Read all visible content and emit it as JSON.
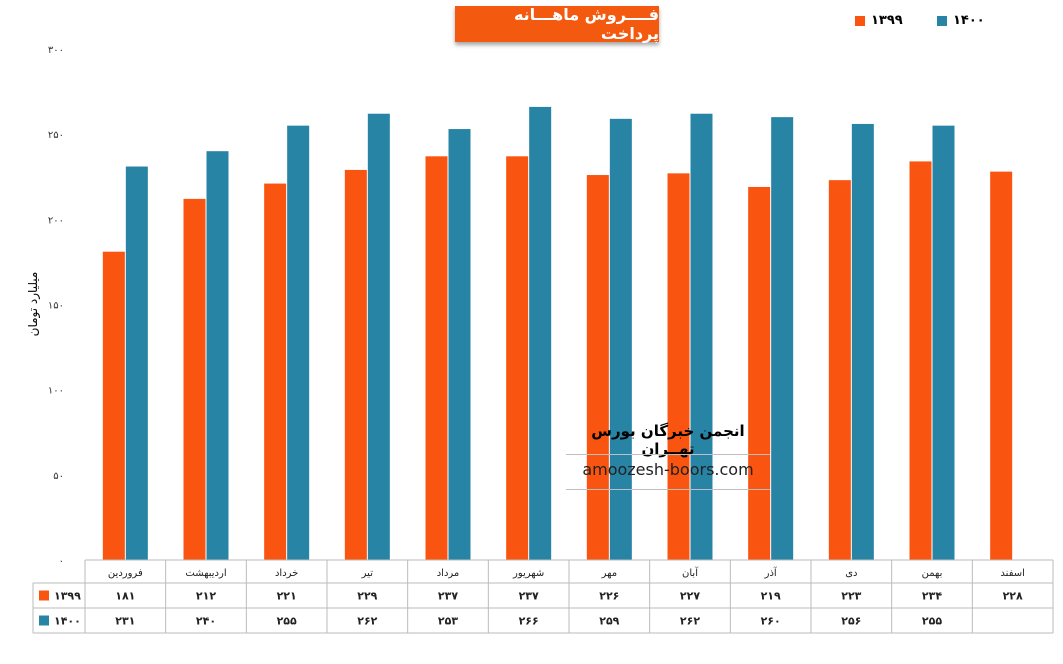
{
  "chart_data": {
    "type": "bar",
    "title": "فــــروش ماهـــانه پرداخت",
    "ylabel": "میلیارد تومان",
    "ylim": [
      0,
      300
    ],
    "yticks": [
      "۰",
      "۵۰",
      "۱۰۰",
      "۱۵۰",
      "۲۰۰",
      "۲۵۰",
      "۳۰۰"
    ],
    "categories": [
      "فروردین",
      "اردیبهشت",
      "خرداد",
      "تیر",
      "مرداد",
      "شهریور",
      "مهر",
      "آبان",
      "آذر",
      "دی",
      "بهمن",
      "اسفند"
    ],
    "series": [
      {
        "name": "۱۳۹۹",
        "color": "#f95410",
        "values": [
          181,
          212,
          221,
          229,
          237,
          237,
          226,
          227,
          219,
          223,
          234,
          228
        ],
        "labels": [
          "۱۸۱",
          "۲۱۲",
          "۲۲۱",
          "۲۲۹",
          "۲۳۷",
          "۲۳۷",
          "۲۲۶",
          "۲۲۷",
          "۲۱۹",
          "۲۲۳",
          "۲۳۴",
          "۲۲۸"
        ]
      },
      {
        "name": "۱۴۰۰",
        "color": "#2784a4",
        "values": [
          231,
          240,
          255,
          262,
          253,
          266,
          259,
          262,
          260,
          256,
          255,
          null
        ],
        "labels": [
          "۲۳۱",
          "۲۴۰",
          "۲۵۵",
          "۲۶۲",
          "۲۵۳",
          "۲۶۶",
          "۲۵۹",
          "۲۶۲",
          "۲۶۰",
          "۲۵۶",
          "۲۵۵",
          ""
        ]
      }
    ],
    "legend_position": "top-right",
    "grid": false,
    "data_table": true
  },
  "watermark": {
    "org": "انجمن خبرگان بورس تهــران",
    "site": "amoozesh-boors.com"
  }
}
